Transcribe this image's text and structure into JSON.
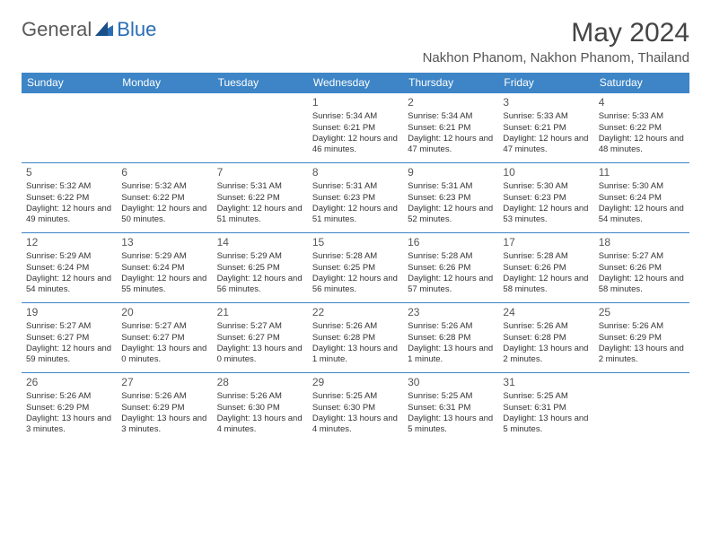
{
  "brand": {
    "part1": "General",
    "part2": "Blue"
  },
  "title": "May 2024",
  "location": "Nakhon Phanom, Nakhon Phanom, Thailand",
  "day_names": [
    "Sunday",
    "Monday",
    "Tuesday",
    "Wednesday",
    "Thursday",
    "Friday",
    "Saturday"
  ],
  "header_bg": "#3d85c6",
  "header_fg": "#ffffff",
  "border_color": "#3d85c6",
  "weeks": [
    [
      null,
      null,
      null,
      {
        "n": "1",
        "sr": "5:34 AM",
        "ss": "6:21 PM",
        "dl": "12 hours and 46 minutes."
      },
      {
        "n": "2",
        "sr": "5:34 AM",
        "ss": "6:21 PM",
        "dl": "12 hours and 47 minutes."
      },
      {
        "n": "3",
        "sr": "5:33 AM",
        "ss": "6:21 PM",
        "dl": "12 hours and 47 minutes."
      },
      {
        "n": "4",
        "sr": "5:33 AM",
        "ss": "6:22 PM",
        "dl": "12 hours and 48 minutes."
      }
    ],
    [
      {
        "n": "5",
        "sr": "5:32 AM",
        "ss": "6:22 PM",
        "dl": "12 hours and 49 minutes."
      },
      {
        "n": "6",
        "sr": "5:32 AM",
        "ss": "6:22 PM",
        "dl": "12 hours and 50 minutes."
      },
      {
        "n": "7",
        "sr": "5:31 AM",
        "ss": "6:22 PM",
        "dl": "12 hours and 51 minutes."
      },
      {
        "n": "8",
        "sr": "5:31 AM",
        "ss": "6:23 PM",
        "dl": "12 hours and 51 minutes."
      },
      {
        "n": "9",
        "sr": "5:31 AM",
        "ss": "6:23 PM",
        "dl": "12 hours and 52 minutes."
      },
      {
        "n": "10",
        "sr": "5:30 AM",
        "ss": "6:23 PM",
        "dl": "12 hours and 53 minutes."
      },
      {
        "n": "11",
        "sr": "5:30 AM",
        "ss": "6:24 PM",
        "dl": "12 hours and 54 minutes."
      }
    ],
    [
      {
        "n": "12",
        "sr": "5:29 AM",
        "ss": "6:24 PM",
        "dl": "12 hours and 54 minutes."
      },
      {
        "n": "13",
        "sr": "5:29 AM",
        "ss": "6:24 PM",
        "dl": "12 hours and 55 minutes."
      },
      {
        "n": "14",
        "sr": "5:29 AM",
        "ss": "6:25 PM",
        "dl": "12 hours and 56 minutes."
      },
      {
        "n": "15",
        "sr": "5:28 AM",
        "ss": "6:25 PM",
        "dl": "12 hours and 56 minutes."
      },
      {
        "n": "16",
        "sr": "5:28 AM",
        "ss": "6:26 PM",
        "dl": "12 hours and 57 minutes."
      },
      {
        "n": "17",
        "sr": "5:28 AM",
        "ss": "6:26 PM",
        "dl": "12 hours and 58 minutes."
      },
      {
        "n": "18",
        "sr": "5:27 AM",
        "ss": "6:26 PM",
        "dl": "12 hours and 58 minutes."
      }
    ],
    [
      {
        "n": "19",
        "sr": "5:27 AM",
        "ss": "6:27 PM",
        "dl": "12 hours and 59 minutes."
      },
      {
        "n": "20",
        "sr": "5:27 AM",
        "ss": "6:27 PM",
        "dl": "13 hours and 0 minutes."
      },
      {
        "n": "21",
        "sr": "5:27 AM",
        "ss": "6:27 PM",
        "dl": "13 hours and 0 minutes."
      },
      {
        "n": "22",
        "sr": "5:26 AM",
        "ss": "6:28 PM",
        "dl": "13 hours and 1 minute."
      },
      {
        "n": "23",
        "sr": "5:26 AM",
        "ss": "6:28 PM",
        "dl": "13 hours and 1 minute."
      },
      {
        "n": "24",
        "sr": "5:26 AM",
        "ss": "6:28 PM",
        "dl": "13 hours and 2 minutes."
      },
      {
        "n": "25",
        "sr": "5:26 AM",
        "ss": "6:29 PM",
        "dl": "13 hours and 2 minutes."
      }
    ],
    [
      {
        "n": "26",
        "sr": "5:26 AM",
        "ss": "6:29 PM",
        "dl": "13 hours and 3 minutes."
      },
      {
        "n": "27",
        "sr": "5:26 AM",
        "ss": "6:29 PM",
        "dl": "13 hours and 3 minutes."
      },
      {
        "n": "28",
        "sr": "5:26 AM",
        "ss": "6:30 PM",
        "dl": "13 hours and 4 minutes."
      },
      {
        "n": "29",
        "sr": "5:25 AM",
        "ss": "6:30 PM",
        "dl": "13 hours and 4 minutes."
      },
      {
        "n": "30",
        "sr": "5:25 AM",
        "ss": "6:31 PM",
        "dl": "13 hours and 5 minutes."
      },
      {
        "n": "31",
        "sr": "5:25 AM",
        "ss": "6:31 PM",
        "dl": "13 hours and 5 minutes."
      },
      null
    ]
  ],
  "labels": {
    "sunrise": "Sunrise:",
    "sunset": "Sunset:",
    "daylight": "Daylight:"
  }
}
